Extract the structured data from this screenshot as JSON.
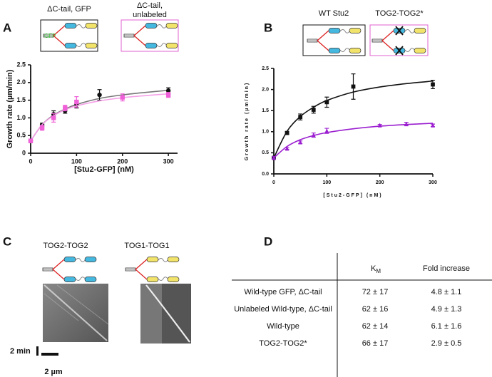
{
  "chart_data": [
    {
      "type": "scatter",
      "panel": "A",
      "x_label": "[Stu2-GFP] (nM)",
      "y_label": "Growth rate  (µm/min)",
      "xlim": [
        0,
        320
      ],
      "xticks": [
        0,
        100,
        200,
        300
      ],
      "ylim": [
        0,
        2.5
      ],
      "yticks": [
        0,
        0.5,
        {
          "value": 1,
          "label": "1.0"
        },
        1.5,
        {
          "value": 2,
          "label": "2.0"
        },
        2.5
      ],
      "fit_x": [
        0,
        25,
        50,
        75,
        100,
        150,
        200,
        250,
        300
      ],
      "series": [
        {
          "color": "#111111",
          "fit_color": "#777777",
          "marker": "circle",
          "x": [
            0,
            25,
            50,
            75,
            100,
            150,
            300
          ],
          "values": [
            0.35,
            0.8,
            1.1,
            1.2,
            1.38,
            1.65,
            1.77
          ],
          "errors": [
            0.05,
            0.05,
            0.1,
            0.07,
            0.1,
            0.15,
            0.08
          ],
          "fit_values": [
            0.35,
            0.81,
            1.08,
            1.25,
            1.38,
            1.55,
            1.65,
            1.72,
            1.78
          ]
        },
        {
          "color": "#f060d8",
          "fit_color": "#f5a0e8",
          "marker": "square",
          "x": [
            0,
            25,
            50,
            75,
            100,
            200,
            300
          ],
          "values": [
            0.35,
            0.72,
            1.0,
            1.28,
            1.45,
            1.58,
            1.65
          ],
          "errors": [
            0.05,
            0.07,
            0.12,
            0.08,
            0.15,
            0.1,
            0.07
          ],
          "fit_values": [
            0.35,
            0.81,
            1.06,
            1.23,
            1.34,
            1.48,
            1.57,
            1.63,
            1.68
          ]
        }
      ]
    },
    {
      "type": "scatter",
      "panel": "B",
      "x_label": "[Stu2-GFP] (nM)",
      "y_label": "Growth rate (µm/min)",
      "xlim": [
        0,
        300
      ],
      "xticks": [
        0,
        100,
        200,
        300
      ],
      "ylim": [
        0,
        2.5
      ],
      "yticks": [
        {
          "value": 0,
          "label": "0.0"
        },
        0.5,
        {
          "value": 1,
          "label": "1.0"
        },
        1.5,
        {
          "value": 2,
          "label": "2.0"
        },
        2.5
      ],
      "fit_x": [
        0,
        25,
        50,
        75,
        100,
        150,
        200,
        250,
        300
      ],
      "series": [
        {
          "color": "#111111",
          "fit_color": "#111111",
          "marker": "square",
          "x": [
            0,
            25,
            50,
            75,
            100,
            150,
            300
          ],
          "values": [
            0.38,
            0.97,
            1.35,
            1.52,
            1.7,
            2.07,
            2.12
          ],
          "errors": [
            0.03,
            0.03,
            0.07,
            0.08,
            0.12,
            0.3,
            0.1
          ],
          "fit_values": [
            0.38,
            1.01,
            1.36,
            1.58,
            1.74,
            1.94,
            2.06,
            2.14,
            2.2
          ]
        },
        {
          "color": "#9b1fd0",
          "fit_color": "#9b1fd0",
          "marker": "triangle",
          "x": [
            0,
            25,
            50,
            75,
            100,
            200,
            250,
            300
          ],
          "values": [
            0.38,
            0.6,
            0.75,
            0.92,
            1.02,
            1.15,
            1.18,
            1.15
          ],
          "errors": [
            0.03,
            0.02,
            0.03,
            0.05,
            0.06,
            0.02,
            0.04,
            0.03
          ],
          "fit_values": [
            0.38,
            0.65,
            0.81,
            0.91,
            0.98,
            1.07,
            1.13,
            1.17,
            1.2
          ]
        }
      ]
    }
  ],
  "panel_a": {
    "letter": "A",
    "constructs": [
      {
        "title_lines": [
          "ΔC-tail, GFP"
        ],
        "tag": "GFP"
      },
      {
        "title_lines": [
          "ΔC-tail,",
          "unlabeled"
        ]
      }
    ]
  },
  "panel_b": {
    "letter": "B",
    "constructs": [
      "WT Stu2",
      "TOG2-TOG2*"
    ]
  },
  "panel_c": {
    "letter": "C",
    "constructs": [
      "TOG2-TOG2",
      "TOG1-TOG1"
    ],
    "time_scale": "2 min",
    "length_scale": "2 µm"
  },
  "panel_d": {
    "letter": "D",
    "table": {
      "columns": [
        {
          "text": "K",
          "sub": "M"
        },
        "Fold increase"
      ],
      "rows": [
        [
          "Wild-type GFP, ΔC-tail",
          "72 ± 17",
          "4.8 ± 1.1"
        ],
        [
          "Unlabeled Wild-type, ΔC-tail",
          "62 ± 16",
          "4.9 ± 1.3"
        ],
        [
          "Wild-type",
          "62 ± 14",
          "6.1 ± 1.6"
        ],
        [
          "TOG2-TOG2*",
          "66 ± 17",
          "2.9 ± 0.5"
        ]
      ]
    }
  }
}
